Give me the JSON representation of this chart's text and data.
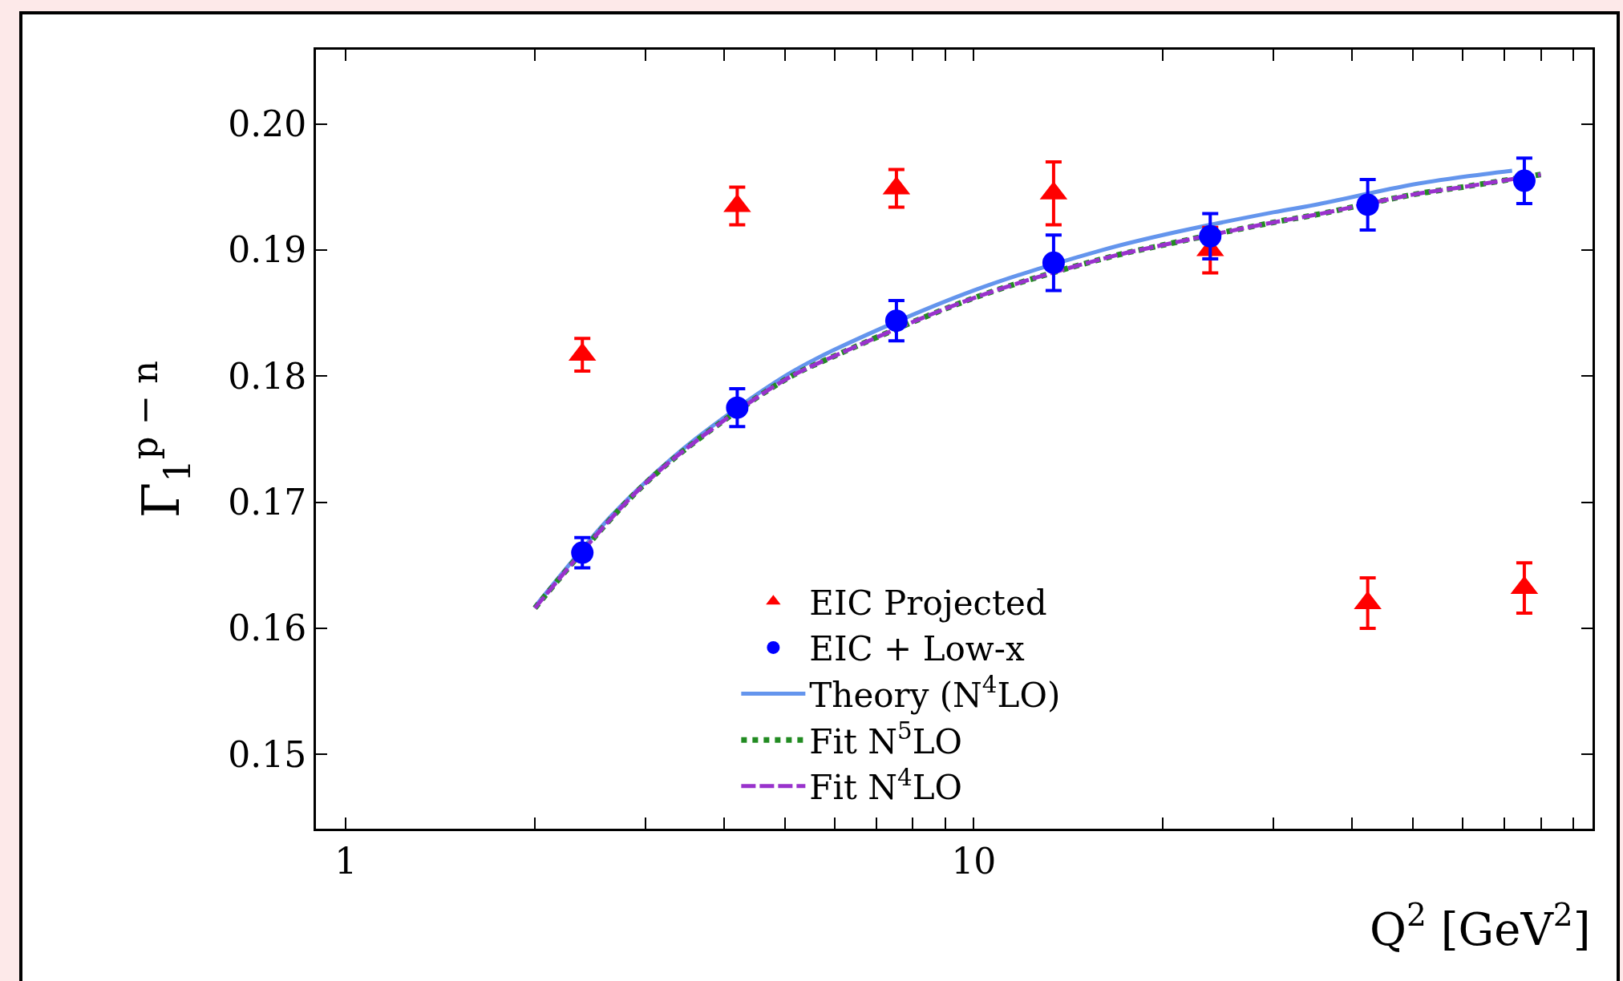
{
  "chart_data": {
    "type": "scatter",
    "xlabel": "Q$^{2}$ [GeV$^{2}$]",
    "ylabel": "Γ$_{1}$$^{p − n}$",
    "log": "x",
    "xlim": [
      0.896,
      96.7
    ],
    "xticks": [
      1,
      {
        "value": 2,
        "label": null
      },
      {
        "value": 3,
        "label": null
      },
      {
        "value": 4,
        "label": null
      },
      {
        "value": 5,
        "label": null
      },
      {
        "value": 6,
        "label": null
      },
      {
        "value": 7,
        "label": null
      },
      {
        "value": 8,
        "label": null
      },
      {
        "value": 9,
        "label": null
      },
      10,
      {
        "value": 20,
        "label": null
      },
      {
        "value": 30,
        "label": null
      },
      {
        "value": 40,
        "label": null
      },
      {
        "value": 50,
        "label": null
      },
      {
        "value": 60,
        "label": null
      },
      {
        "value": 70,
        "label": null
      },
      {
        "value": 80,
        "label": null
      },
      {
        "value": 90,
        "label": null
      }
    ],
    "ylim": [
      0.1441,
      0.2059
    ],
    "yticks": [
      {
        "value": 0.15,
        "label": "0.15"
      },
      {
        "value": 0.16,
        "label": "0.16"
      },
      {
        "value": 0.17,
        "label": "0.17"
      },
      {
        "value": 0.18,
        "label": "0.18"
      },
      {
        "value": 0.19,
        "label": "0.19"
      },
      {
        "value": 0.2,
        "label": "0.20"
      }
    ],
    "grid": false,
    "legend": "bottom",
    "series": [
      {
        "name": "EIC Projected",
        "marker": "triangle",
        "color": "#ff0000",
        "x": [
          2.38,
          4.2,
          7.53,
          13.4,
          23.8,
          42.4,
          75.3
        ],
        "values": [
          0.1817,
          0.1935,
          0.1949,
          0.1945,
          0.19,
          0.162,
          0.1632
        ],
        "errors": [
          0.0013,
          0.0015,
          0.0015,
          0.0025,
          0.0018,
          0.002,
          0.002
        ]
      },
      {
        "name": "EIC + Low-x",
        "marker": "circle",
        "color": "#0000ff",
        "x": [
          2.38,
          4.2,
          7.53,
          13.4,
          23.8,
          42.4,
          75.3
        ],
        "values": [
          0.166,
          0.1775,
          0.1844,
          0.189,
          0.1911,
          0.1936,
          0.1955
        ],
        "errors": [
          0.0012,
          0.0015,
          0.0016,
          0.0022,
          0.0018,
          0.002,
          0.0018
        ]
      },
      {
        "name": "Theory (N$^{4}$LO)",
        "type": "line",
        "line_style": "solid",
        "color": "#6495ed",
        "x": [
          2,
          2.6,
          3,
          3.6,
          5,
          6,
          10,
          16,
          20,
          30,
          35,
          50,
          60,
          72
        ],
        "values": [
          0.1617,
          0.1685,
          0.1716,
          0.175,
          0.18,
          0.1821,
          0.1868,
          0.19,
          0.1912,
          0.193,
          0.1936,
          0.1952,
          0.1958,
          0.1963
        ]
      },
      {
        "name": "Fit N$^{5}$LO",
        "type": "line",
        "line_style": "dotted",
        "color": "#228b22",
        "x": [
          2,
          2.6,
          3,
          3.6,
          5,
          6,
          10,
          16,
          20,
          30,
          35,
          50,
          60,
          80
        ],
        "values": [
          0.1616,
          0.1683,
          0.1715,
          0.1748,
          0.1797,
          0.1816,
          0.1862,
          0.1893,
          0.1904,
          0.1922,
          0.1928,
          0.1944,
          0.195,
          0.196
        ]
      },
      {
        "name": "Fit N$^{4}$LO",
        "type": "line",
        "line_style": "dashed",
        "color": "#9932cc",
        "x": [
          2,
          2.6,
          3,
          3.6,
          5,
          6,
          10,
          16,
          20,
          30,
          35,
          50,
          60,
          80
        ],
        "values": [
          0.1616,
          0.1683,
          0.1715,
          0.1748,
          0.1797,
          0.1816,
          0.1862,
          0.1893,
          0.1904,
          0.1922,
          0.1928,
          0.1944,
          0.195,
          0.196
        ]
      }
    ]
  }
}
